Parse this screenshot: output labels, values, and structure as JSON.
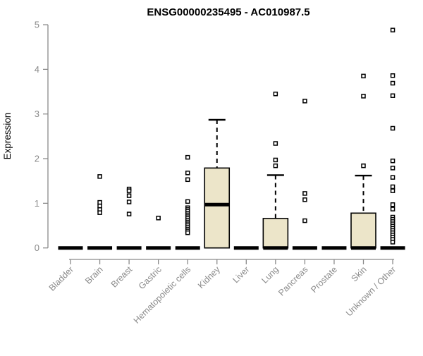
{
  "chart_data": {
    "type": "boxplot",
    "title": "ENSG00000235495 - AC010987.5",
    "xlabel": "",
    "ylabel": "Expression",
    "ylim": [
      0,
      5
    ],
    "yticks": [
      0,
      1,
      2,
      3,
      4,
      5
    ],
    "grid": false,
    "legend": false,
    "categories": [
      "Bladder",
      "Brain",
      "Breast",
      "Gastric",
      "Hematopoietic cells",
      "Kidney",
      "Liver",
      "Lung",
      "Pancreas",
      "Prostate",
      "Skin",
      "Unknown / Other"
    ],
    "boxes": [
      {
        "category": "Bladder",
        "q1": 0,
        "median": 0,
        "q3": 0,
        "whisker_low": 0,
        "whisker_high": 0,
        "outliers": []
      },
      {
        "category": "Brain",
        "q1": 0,
        "median": 0,
        "q3": 0,
        "whisker_low": 0,
        "whisker_high": 0,
        "outliers": [
          1.6,
          1.02,
          0.94,
          0.86,
          0.79
        ]
      },
      {
        "category": "Breast",
        "q1": 0,
        "median": 0,
        "q3": 0,
        "whisker_low": 0,
        "whisker_high": 0,
        "outliers": [
          1.32,
          1.28,
          1.17,
          1.03,
          0.76
        ]
      },
      {
        "category": "Gastric",
        "q1": 0,
        "median": 0,
        "q3": 0,
        "whisker_low": 0,
        "whisker_high": 0,
        "outliers": [
          0.67
        ]
      },
      {
        "category": "Hematopoietic cells",
        "q1": 0,
        "median": 0,
        "q3": 0,
        "whisker_low": 0,
        "whisker_high": 0,
        "outliers": [
          2.03,
          1.68,
          1.53,
          1.04,
          0.9,
          0.86,
          0.82,
          0.78,
          0.74,
          0.7,
          0.66,
          0.62,
          0.58,
          0.54,
          0.5,
          0.46,
          0.42,
          0.38,
          0.34
        ]
      },
      {
        "category": "Kidney",
        "q1": 0,
        "median": 0.97,
        "q3": 1.79,
        "whisker_low": 0,
        "whisker_high": 2.87,
        "outliers": []
      },
      {
        "category": "Liver",
        "q1": 0,
        "median": 0,
        "q3": 0,
        "whisker_low": 0,
        "whisker_high": 0,
        "outliers": []
      },
      {
        "category": "Lung",
        "q1": 0,
        "median": 0,
        "q3": 0.66,
        "whisker_low": 0,
        "whisker_high": 1.63,
        "outliers": [
          3.45,
          2.34,
          1.97,
          1.84
        ]
      },
      {
        "category": "Pancreas",
        "q1": 0,
        "median": 0,
        "q3": 0,
        "whisker_low": 0,
        "whisker_high": 0,
        "outliers": [
          3.29,
          1.22,
          1.08,
          0.61
        ]
      },
      {
        "category": "Prostate",
        "q1": 0,
        "median": 0,
        "q3": 0,
        "whisker_low": 0,
        "whisker_high": 0,
        "outliers": []
      },
      {
        "category": "Skin",
        "q1": 0,
        "median": 0,
        "q3": 0.78,
        "whisker_low": 0,
        "whisker_high": 1.62,
        "outliers": [
          3.85,
          3.4,
          1.84
        ]
      },
      {
        "category": "Unknown / Other",
        "q1": 0,
        "median": 0,
        "q3": 0,
        "whisker_low": 0,
        "whisker_high": 0,
        "outliers": [
          4.88,
          3.86,
          3.69,
          3.41,
          2.68,
          1.95,
          1.79,
          1.58,
          1.37,
          1.28,
          0.97,
          0.87,
          0.69,
          0.64,
          0.59,
          0.54,
          0.49,
          0.44,
          0.39,
          0.34,
          0.29,
          0.24,
          0.19,
          0.13
        ]
      }
    ],
    "colors": {
      "box_fill": "#ece5c9",
      "box_stroke": "#000000",
      "median": "#000000",
      "whisker": "#000000",
      "outlier_stroke": "#000000",
      "outlier_fill": "#ffffff",
      "axis": "#8a8a8a",
      "tick_label": "#8a8a8a",
      "title": "#000000"
    }
  }
}
